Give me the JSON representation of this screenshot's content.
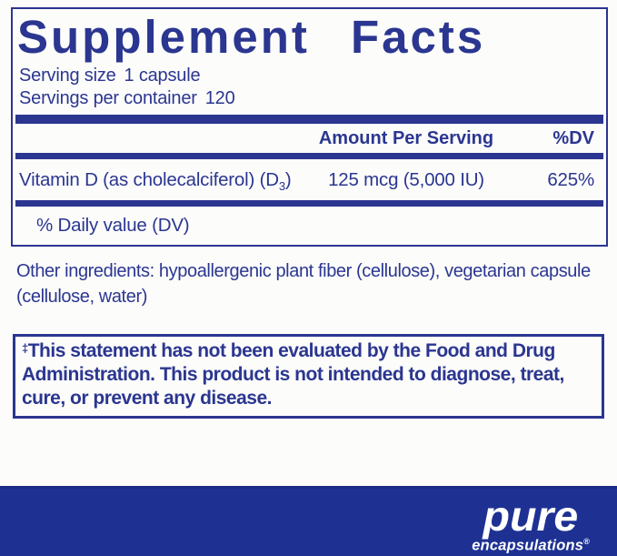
{
  "colors": {
    "accent_navy": "#2b3690",
    "footer_bar_blue": "#1e3193",
    "background": "#fcfcfb",
    "logo_text": "#ffffff"
  },
  "supplement_facts": {
    "title": "Supplement Facts",
    "serving_size_label": "Serving size",
    "serving_size_value": "1 capsule",
    "servings_per_container_label": "Servings per container",
    "servings_per_container_value": "120",
    "header": {
      "amount_per_serving": "Amount Per Serving",
      "percent_dv": "%DV"
    },
    "rows": [
      {
        "name": "Vitamin D (as cholecalciferol) (D",
        "name_subscript": "3",
        "name_suffix": ")",
        "amount": "125 mcg (5,000 IU)",
        "percent_dv": "625%"
      }
    ],
    "footnote": "% Daily value (DV)"
  },
  "other_ingredients": "Other ingredients: hypoallergenic plant fiber (cellulose), vegetarian capsule (cellulose, water)",
  "disclaimer": {
    "dagger": "‡",
    "text": "This statement has not been evaluated by the Food and Drug Administration. This product is not intended to diagnose, treat, cure, or prevent any disease."
  },
  "brand": {
    "name": "pure",
    "tagline": "encapsulations",
    "registered_mark": "®"
  }
}
